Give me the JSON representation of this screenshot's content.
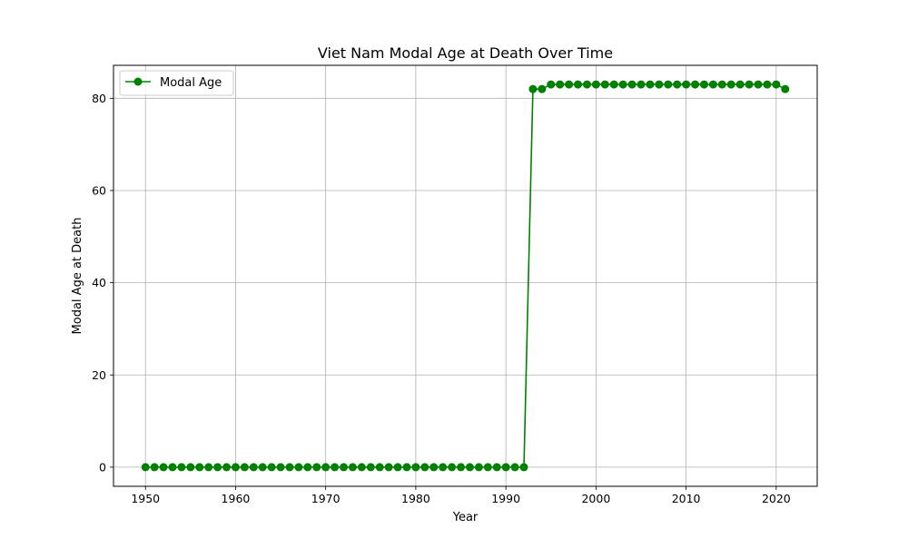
{
  "chart_data": {
    "type": "line",
    "title": "Viet Nam Modal Age at Death Over Time",
    "xlabel": "Year",
    "ylabel": "Modal Age at Death",
    "xlim": [
      1946.45,
      2024.55
    ],
    "ylim": [
      -4.15,
      87.15
    ],
    "x_ticks": [
      1950,
      1960,
      1970,
      1980,
      1990,
      2000,
      2010,
      2020
    ],
    "y_ticks": [
      0,
      20,
      40,
      60,
      80
    ],
    "grid": true,
    "legend_position": "top-left",
    "series": [
      {
        "name": "Modal Age",
        "color": "#008000",
        "marker": "circle",
        "x": [
          1950,
          1951,
          1952,
          1953,
          1954,
          1955,
          1956,
          1957,
          1958,
          1959,
          1960,
          1961,
          1962,
          1963,
          1964,
          1965,
          1966,
          1967,
          1968,
          1969,
          1970,
          1971,
          1972,
          1973,
          1974,
          1975,
          1976,
          1977,
          1978,
          1979,
          1980,
          1981,
          1982,
          1983,
          1984,
          1985,
          1986,
          1987,
          1988,
          1989,
          1990,
          1991,
          1992,
          1993,
          1994,
          1995,
          1996,
          1997,
          1998,
          1999,
          2000,
          2001,
          2002,
          2003,
          2004,
          2005,
          2006,
          2007,
          2008,
          2009,
          2010,
          2011,
          2012,
          2013,
          2014,
          2015,
          2016,
          2017,
          2018,
          2019,
          2020,
          2021
        ],
        "values": [
          0,
          0,
          0,
          0,
          0,
          0,
          0,
          0,
          0,
          0,
          0,
          0,
          0,
          0,
          0,
          0,
          0,
          0,
          0,
          0,
          0,
          0,
          0,
          0,
          0,
          0,
          0,
          0,
          0,
          0,
          0,
          0,
          0,
          0,
          0,
          0,
          0,
          0,
          0,
          0,
          0,
          0,
          0,
          82,
          82,
          83,
          83,
          83,
          83,
          83,
          83,
          83,
          83,
          83,
          83,
          83,
          83,
          83,
          83,
          83,
          83,
          83,
          83,
          83,
          83,
          83,
          83,
          83,
          83,
          83,
          83,
          82
        ]
      }
    ]
  },
  "colors": {
    "grid": "#b0b0b0",
    "axis": "#000000",
    "legend_border": "#cccccc"
  }
}
